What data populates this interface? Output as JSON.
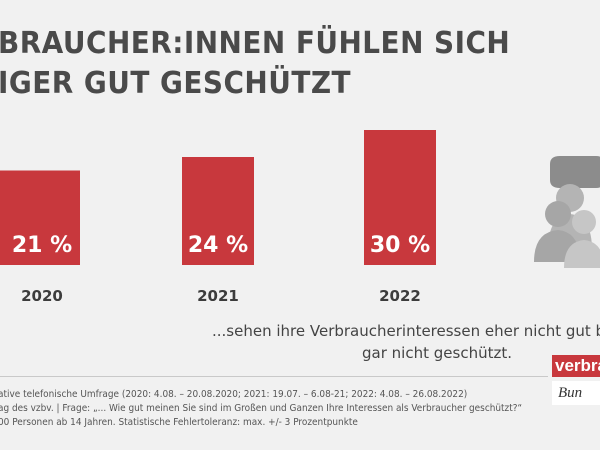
{
  "header": {
    "title_line1": "BRAUCHER:INNEN FÜHLEN SICH",
    "title_line2": "IGER GUT GESCHÜTZT"
  },
  "chart_data": {
    "type": "bar",
    "categories": [
      "2020",
      "2021",
      "2022"
    ],
    "values": [
      21,
      24,
      30
    ],
    "value_labels": [
      "21 %",
      "24 %",
      "30 %"
    ],
    "unit": "%",
    "bar_color": "#c8383d",
    "ylim": [
      0,
      30
    ]
  },
  "caption": {
    "line1": "...sehen ihre Verbraucherinteressen eher nicht gut bzw.",
    "line2": "gar nicht geschützt."
  },
  "footnote": {
    "line1": "ative telefonische Umfrage (2020: 4.08. – 20.08.2020; 2021: 19.07. – 6.08-21; 2022: 4.08. – 26.08.2022)",
    "line2": "ag des vzbv. | Frage: „... Wie gut meinen Sie sind im Großen und Ganzen Ihre Interessen als Verbraucher geschützt?“",
    "line3": "00 Personen ab 14 Jahren. Statistische Fehlertoleranz: max. +/- 3 Prozentpunkte"
  },
  "logo": {
    "top": "verbrauche",
    "bottom": "Bun"
  },
  "colors": {
    "accent": "#c8383d",
    "title": "#4a4a4a",
    "background": "#f1f1f1",
    "illustration": "#a0a0a0"
  },
  "icons": {
    "illustration": "people-speech-bubble-icon"
  }
}
